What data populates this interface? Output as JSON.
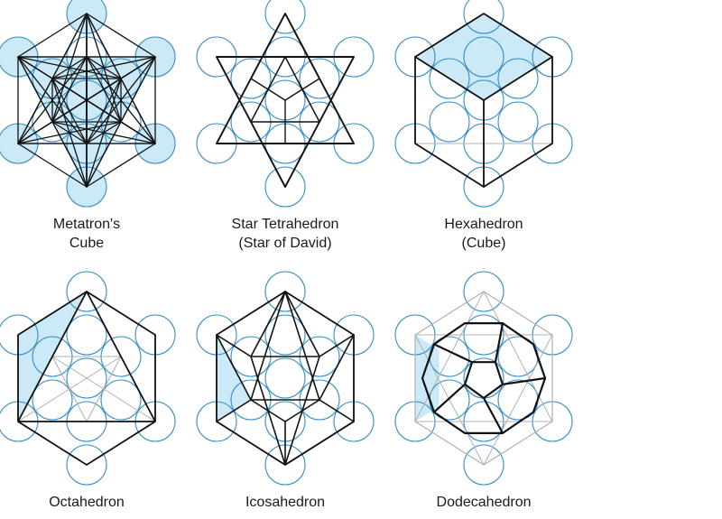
{
  "colors": {
    "circle_stroke": "#3a8fc8",
    "highlight_fill": "#cce9f7",
    "edge": "#111111",
    "faint_edge": "#b0b0b0"
  },
  "figures": [
    {
      "id": "metatron",
      "caption": [
        "Metatron's",
        "Cube"
      ],
      "highlight": "outer-circles"
    },
    {
      "id": "star-tetrahedron",
      "caption": [
        "Star Tetrahedron",
        "(Star of David)"
      ],
      "highlight": "none"
    },
    {
      "id": "hexahedron",
      "caption": [
        "Hexahedron",
        "(Cube)"
      ],
      "highlight": "top-face"
    },
    {
      "id": "octahedron",
      "caption": [
        "Octahedron"
      ],
      "highlight": "left-face"
    },
    {
      "id": "icosahedron",
      "caption": [
        "Icosahedron"
      ],
      "highlight": "left-face"
    },
    {
      "id": "dodecahedron",
      "caption": [
        "Dodecahedron"
      ],
      "highlight": "left-face"
    }
  ]
}
